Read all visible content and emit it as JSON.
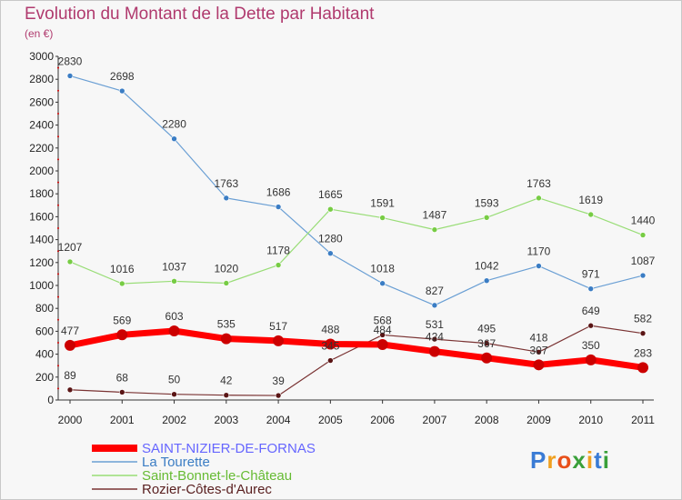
{
  "chart_data": {
    "type": "line",
    "title": "Evolution du Montant de la Dette par Habitant",
    "unit": "(en €)",
    "categories": [
      "2000",
      "2001",
      "2002",
      "2003",
      "2004",
      "2005",
      "2006",
      "2007",
      "2008",
      "2009",
      "2010",
      "2011"
    ],
    "y_ticks": [
      "0",
      "200",
      "400",
      "600",
      "800",
      "1000",
      "1200",
      "1400",
      "1600",
      "1800",
      "2000",
      "2200",
      "2400",
      "2600",
      "2800",
      "3000"
    ],
    "ylim": [
      0,
      3000
    ],
    "grid": false,
    "legend_position": "bottom-left",
    "series": [
      {
        "name": "SAINT-NIZIER-DE-FORNAS",
        "color": "#ff0000",
        "point_color": "#cc0000",
        "legend_color": "#6666ff",
        "width": 7,
        "values": [
          477,
          569,
          603,
          535,
          517,
          488,
          484,
          424,
          367,
          307,
          350,
          283
        ]
      },
      {
        "name": "La Tourette",
        "color": "#6a9fd4",
        "point_color": "#3b7dc4",
        "legend_color": "#3b7dc4",
        "width": 1.2,
        "values": [
          2830,
          2698,
          2280,
          1763,
          1686,
          1280,
          1018,
          827,
          1042,
          1170,
          971,
          1087
        ]
      },
      {
        "name": "Saint-Bonnet-le-Château",
        "color": "#99dd77",
        "point_color": "#77cc44",
        "legend_color": "#66bb33",
        "width": 1.2,
        "values": [
          1207,
          1016,
          1037,
          1020,
          1178,
          1665,
          1591,
          1487,
          1593,
          1763,
          1619,
          1440
        ]
      },
      {
        "name": "Rozier-Côtes-d'Aurec",
        "color": "#7a3333",
        "point_color": "#5a1515",
        "legend_color": "#5a2020",
        "width": 1.2,
        "values": [
          89,
          68,
          50,
          42,
          39,
          345,
          568,
          531,
          495,
          418,
          649,
          582
        ]
      }
    ]
  },
  "logo": {
    "letters": [
      "P",
      "r",
      "o",
      "x",
      "i",
      "t",
      "i"
    ],
    "colors": [
      "#3a7bd5",
      "#f0a020",
      "#e8501a",
      "#3aa03a",
      "#f0a020",
      "#3a7bd5",
      "#3aa03a"
    ]
  }
}
